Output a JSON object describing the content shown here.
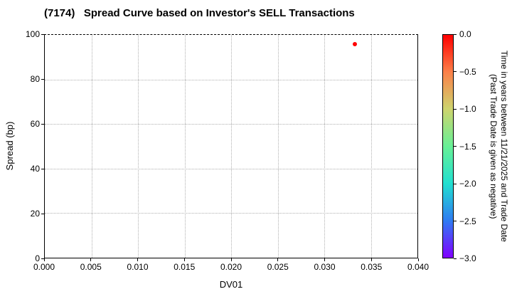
{
  "chart_data": {
    "type": "scatter",
    "title": "(7174)   Spread Curve based on Investor's SELL Transactions",
    "xlabel": "DV01",
    "ylabel": "Spread (bp)",
    "xlim": [
      0.0,
      0.04
    ],
    "ylim": [
      0,
      100
    ],
    "grid": true,
    "grid_style": "dotted",
    "xticks": [
      {
        "label": "0.000",
        "value": 0.0
      },
      {
        "label": "0.005",
        "value": 0.005
      },
      {
        "label": "0.010",
        "value": 0.01
      },
      {
        "label": "0.015",
        "value": 0.015
      },
      {
        "label": "0.020",
        "value": 0.02
      },
      {
        "label": "0.025",
        "value": 0.025
      },
      {
        "label": "0.030",
        "value": 0.03
      },
      {
        "label": "0.035",
        "value": 0.035
      },
      {
        "label": "0.040",
        "value": 0.04
      }
    ],
    "yticks": [
      {
        "label": "0",
        "value": 0
      },
      {
        "label": "20",
        "value": 20
      },
      {
        "label": "40",
        "value": 40
      },
      {
        "label": "60",
        "value": 60
      },
      {
        "label": "80",
        "value": 80
      },
      {
        "label": "100",
        "value": 100
      }
    ],
    "points": [
      {
        "x": 0.0333,
        "y": 96,
        "time_in_years": 0.0,
        "color": "#ff0000"
      }
    ],
    "colorbar": {
      "label_line1": "Time in years between 11/21/2025 and Trade Date",
      "label_line2": "(Past Trade Date is given as negative)",
      "range": [
        0.0,
        -3.0
      ],
      "ticks": [
        {
          "label": "0.0",
          "value": 0.0
        },
        {
          "label": "−0.5",
          "value": -0.5
        },
        {
          "label": "−1.0",
          "value": -1.0
        },
        {
          "label": "−1.5",
          "value": -1.5
        },
        {
          "label": "−2.0",
          "value": -2.0
        },
        {
          "label": "−2.5",
          "value": -2.5
        },
        {
          "label": "−3.0",
          "value": -3.0
        }
      ],
      "gradient": [
        "#ff0000",
        "#fb8049",
        "#cdd46e",
        "#68f096",
        "#22e0d0",
        "#2f7bf2",
        "#8000ff"
      ]
    }
  }
}
